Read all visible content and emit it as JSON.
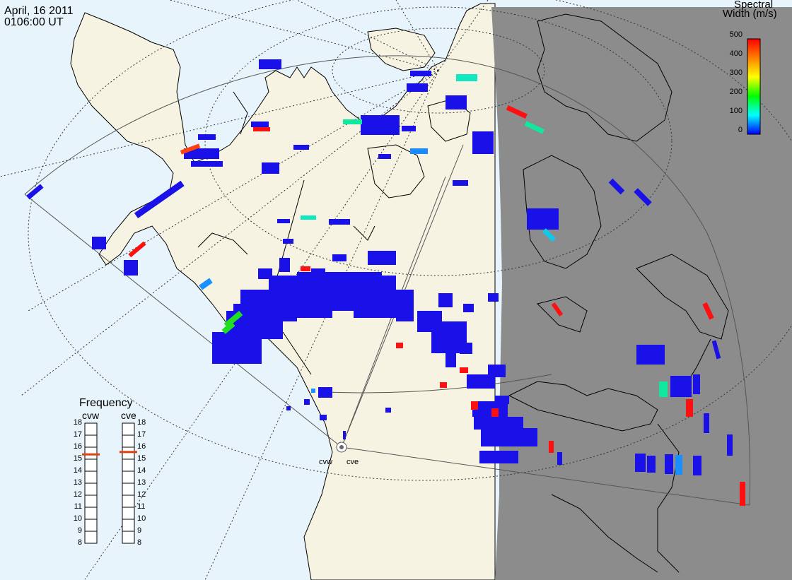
{
  "header": {
    "date": "April, 16 2011",
    "time": "0106:00 UT"
  },
  "colorbar": {
    "title_line1": "Spectral",
    "title_line2": "Width (m/s)",
    "ticks": [
      "500",
      "400",
      "300",
      "200",
      "100",
      "0"
    ],
    "colors": [
      "#ff0000",
      "#ff8000",
      "#ffff00",
      "#00ff00",
      "#00ffff",
      "#0000ff"
    ]
  },
  "frequency": {
    "title": "Frequency",
    "radars": [
      "cvw",
      "cve"
    ],
    "ticks": [
      "18",
      "17",
      "16",
      "15",
      "14",
      "13",
      "12",
      "11",
      "10",
      "9",
      "8"
    ],
    "cvw_value": 15.4,
    "cve_value": 15.6
  },
  "sites": {
    "cvw": "cvw",
    "cve": "cve"
  },
  "map_colors": {
    "ocean": "#e8f4fc",
    "land": "#f7f3e3",
    "night": "#8c8c8c",
    "coast": "#000000"
  }
}
